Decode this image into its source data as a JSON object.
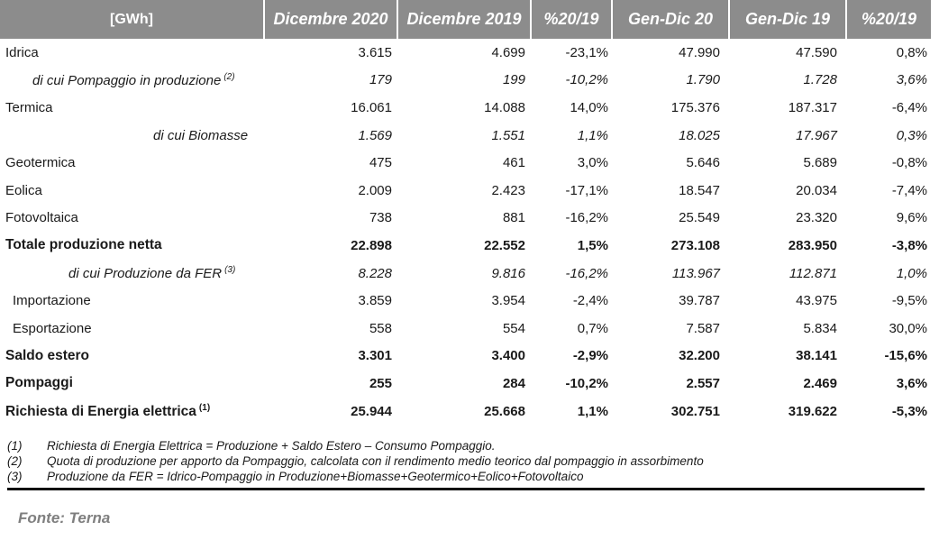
{
  "table": {
    "headers": [
      "[GWh]",
      "Dicembre 2020",
      "Dicembre 2019",
      "%20/19",
      "Gen-Dic 20",
      "Gen-Dic 19",
      "%20/19"
    ],
    "rows": [
      {
        "label": "Idrica",
        "sup": "",
        "values": [
          "3.615",
          "4.699",
          "-23,1%",
          "47.990",
          "47.590",
          "0,8%"
        ]
      },
      {
        "label": "di cui Pompaggio in produzione",
        "sup": "(2)",
        "values": [
          "179",
          "199",
          "-10,2%",
          "1.790",
          "1.728",
          "3,6%"
        ]
      },
      {
        "label": "Termica",
        "sup": "",
        "values": [
          "16.061",
          "14.088",
          "14,0%",
          "175.376",
          "187.317",
          "-6,4%"
        ]
      },
      {
        "label": "di cui Biomasse",
        "sup": "",
        "values": [
          "1.569",
          "1.551",
          "1,1%",
          "18.025",
          "17.967",
          "0,3%"
        ]
      },
      {
        "label": "Geotermica",
        "sup": "",
        "values": [
          "475",
          "461",
          "3,0%",
          "5.646",
          "5.689",
          "-0,8%"
        ]
      },
      {
        "label": "Eolica",
        "sup": "",
        "values": [
          "2.009",
          "2.423",
          "-17,1%",
          "18.547",
          "20.034",
          "-7,4%"
        ]
      },
      {
        "label": "Fotovoltaica",
        "sup": "",
        "values": [
          "738",
          "881",
          "-16,2%",
          "25.549",
          "23.320",
          "9,6%"
        ]
      },
      {
        "label": "Totale produzione netta",
        "sup": "",
        "values": [
          "22.898",
          "22.552",
          "1,5%",
          "273.108",
          "283.950",
          "-3,8%"
        ]
      },
      {
        "label": "di cui Produzione da FER",
        "sup": "(3)",
        "values": [
          "8.228",
          "9.816",
          "-16,2%",
          "113.967",
          "112.871",
          "1,0%"
        ]
      },
      {
        "label": "Importazione",
        "sup": "",
        "values": [
          "3.859",
          "3.954",
          "-2,4%",
          "39.787",
          "43.975",
          "-9,5%"
        ]
      },
      {
        "label": "Esportazione",
        "sup": "",
        "values": [
          "558",
          "554",
          "0,7%",
          "7.587",
          "5.834",
          "30,0%"
        ]
      },
      {
        "label": "Saldo estero",
        "sup": "",
        "values": [
          "3.301",
          "3.400",
          "-2,9%",
          "32.200",
          "38.141",
          "-15,6%"
        ]
      },
      {
        "label": "Pompaggi",
        "sup": "",
        "values": [
          "255",
          "284",
          "-10,2%",
          "2.557",
          "2.469",
          "3,6%"
        ]
      },
      {
        "label": "Richiesta di Energia elettrica",
        "sup": "(1)",
        "values": [
          "25.944",
          "25.668",
          "1,1%",
          "302.751",
          "319.622",
          "-5,3%"
        ]
      }
    ]
  },
  "notes": [
    {
      "num": "(1)",
      "text": "Richiesta di Energia Elettrica = Produzione + Saldo Estero – Consumo Pompaggio."
    },
    {
      "num": "(2)",
      "text": "Quota di produzione per apporto da Pompaggio, calcolata con il rendimento medio teorico dal pompaggio in assorbimento"
    },
    {
      "num": "(3)",
      "text": "Produzione da FER = Idrico-Pompaggio in Produzione+Biomasse+Geotermico+Eolico+Fotovoltaico"
    }
  ],
  "source": "Fonte: Terna"
}
